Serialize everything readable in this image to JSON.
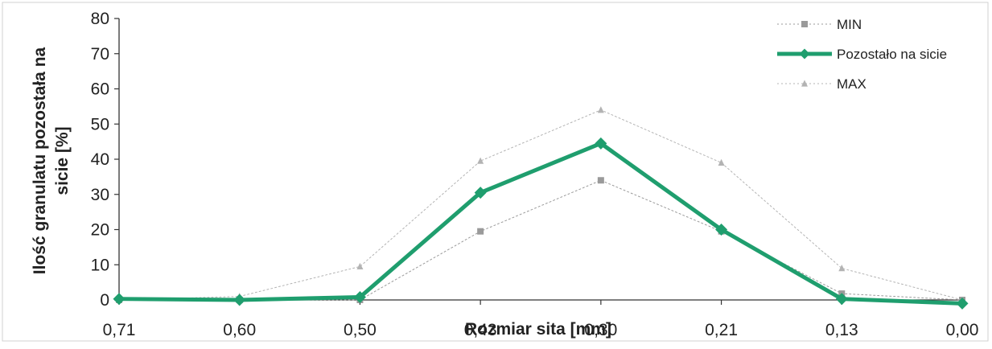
{
  "chart_data": {
    "type": "line",
    "categories": [
      "0,71",
      "0,60",
      "0,50",
      "0,43",
      "0,30",
      "0,21",
      "0,13",
      "0,00"
    ],
    "series": [
      {
        "name": "MIN",
        "values": [
          0,
          0,
          0,
          19.5,
          34,
          19.5,
          1.8,
          0
        ],
        "color": "#9a9a9a",
        "marker": "square"
      },
      {
        "name": "Pozostało na sicie",
        "values": [
          0.3,
          0,
          0.8,
          30.5,
          44.5,
          20,
          0.3,
          -1
        ],
        "color": "#1f9e6e",
        "marker": "diamond"
      },
      {
        "name": "MAX",
        "values": [
          0,
          1,
          9.5,
          39.5,
          54,
          39,
          9,
          0
        ],
        "color": "#b3b3b3",
        "marker": "triangle"
      }
    ],
    "title": "",
    "xlabel": "Rozmiar sita [mm]",
    "ylabel": "Ilość  granulatu pozostała na sicie [%]",
    "ylabel_lines": [
      "Ilość  granulatu pozostała na",
      "sicie [%]"
    ],
    "ylim": [
      0,
      80
    ],
    "yticks": [
      0,
      10,
      20,
      30,
      40,
      50,
      60,
      70,
      80
    ],
    "grid": false,
    "legend_position": "top-right"
  }
}
